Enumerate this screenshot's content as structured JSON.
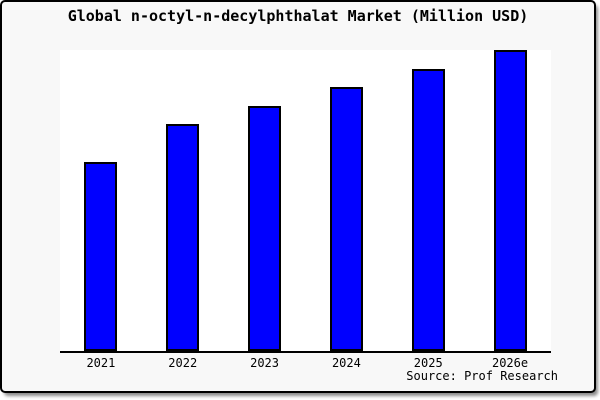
{
  "window": {
    "background_color": "#f8f8f8",
    "frame_border_color": "#000000",
    "plot_background_color": "#ffffff"
  },
  "chart_data": {
    "type": "bar",
    "title": "Global n-octyl-n-decylphthalat Market (Million USD)",
    "categories": [
      "2021",
      "2022",
      "2023",
      "2024",
      "2025",
      "2026e"
    ],
    "values": [
      189,
      227,
      245,
      264,
      282,
      301
    ],
    "value_unit": "relative bar height in px (no y-axis tick labels shown in image)",
    "ylim": [
      0,
      301
    ],
    "xlabel": "",
    "ylabel": "",
    "gridlines": false,
    "legend": false,
    "y_axis_visible": false,
    "bar_color": "#0000ff",
    "bar_border_color": "#000000",
    "axis_line_color": "#000000",
    "source_note": "Source: Prof Research"
  }
}
